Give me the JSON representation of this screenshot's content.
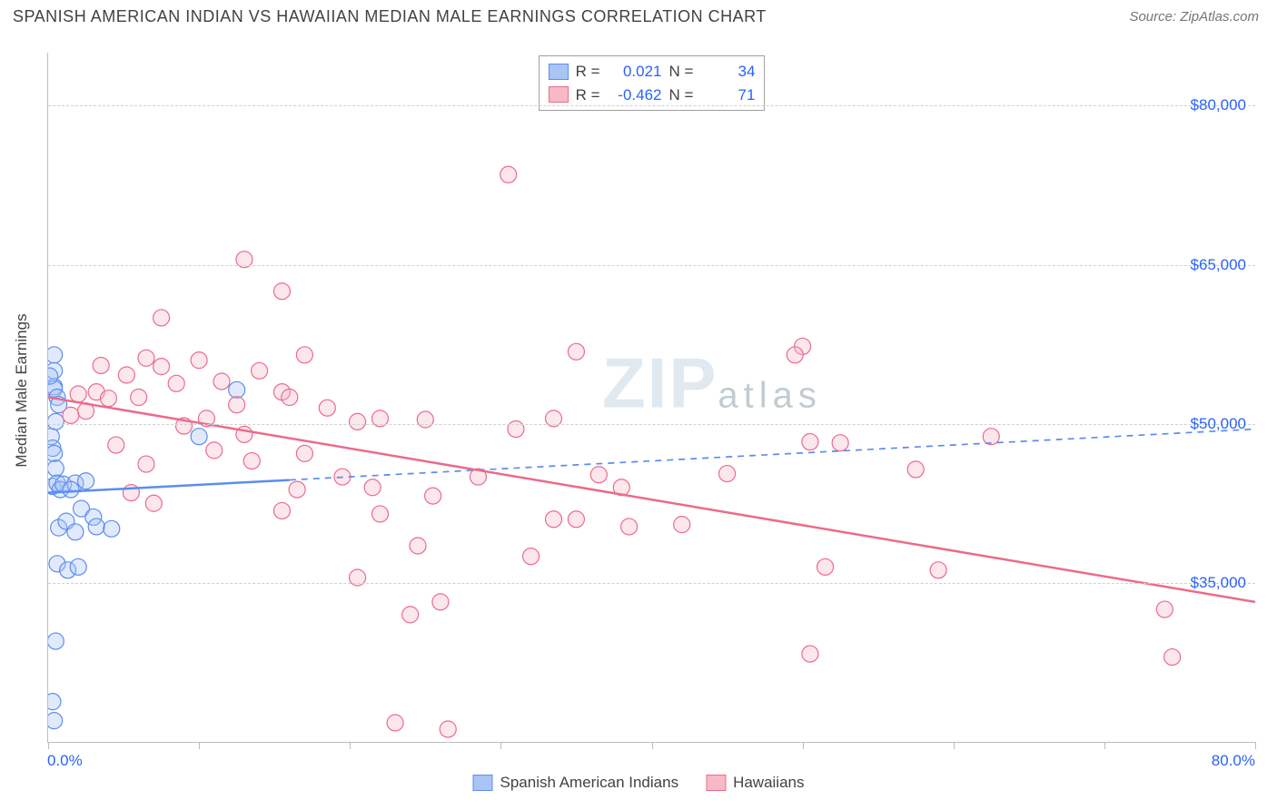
{
  "header": {
    "title": "SPANISH AMERICAN INDIAN VS HAWAIIAN MEDIAN MALE EARNINGS CORRELATION CHART",
    "source": "Source: ZipAtlas.com"
  },
  "watermark": {
    "main": "ZIP",
    "sub": "atlas"
  },
  "chart": {
    "type": "scatter",
    "ylabel": "Median Male Earnings",
    "xlim": [
      0,
      80
    ],
    "ylim": [
      20000,
      85000
    ],
    "xaxis_min_label": "0.0%",
    "xaxis_max_label": "80.0%",
    "ytick_values": [
      35000,
      50000,
      65000,
      80000
    ],
    "ytick_labels": [
      "$35,000",
      "$50,000",
      "$65,000",
      "$80,000"
    ],
    "xtick_values": [
      0,
      10,
      20,
      30,
      40,
      50,
      60,
      70,
      80
    ],
    "background_color": "#ffffff",
    "grid_color": "#d0d0d0",
    "grid_dash": "4,4",
    "axis_color": "#bdbdbd",
    "tick_label_color": "#2962ff",
    "marker_radius": 9,
    "marker_fill_opacity": 0.35,
    "trend_line_width": 2.5,
    "series": [
      {
        "name": "Spanish American Indians",
        "color": "#5b8def",
        "fill": "#a9c4f5",
        "stroke": "#5b8def",
        "r_label": "R =",
        "r_value": "0.021",
        "n_label": "N =",
        "n_value": "34",
        "trend": {
          "x1": 0,
          "y1": 43500,
          "x2": 80,
          "y2": 49500,
          "solid_until_x": 16,
          "dash": "7,6"
        },
        "points": [
          [
            0.4,
            56500
          ],
          [
            0.4,
            55000
          ],
          [
            0.4,
            53500
          ],
          [
            0.4,
            53300
          ],
          [
            0.6,
            52500
          ],
          [
            0.7,
            51800
          ],
          [
            0.1,
            54500
          ],
          [
            0.5,
            50200
          ],
          [
            0.2,
            48800
          ],
          [
            0.3,
            47700
          ],
          [
            0.4,
            47200
          ],
          [
            0.5,
            45800
          ],
          [
            0.3,
            44100
          ],
          [
            0.6,
            44400
          ],
          [
            0.8,
            43800
          ],
          [
            1.0,
            44300
          ],
          [
            1.8,
            44400
          ],
          [
            2.5,
            44600
          ],
          [
            1.5,
            43800
          ],
          [
            2.2,
            42000
          ],
          [
            3.0,
            41200
          ],
          [
            0.7,
            40200
          ],
          [
            1.2,
            40800
          ],
          [
            1.8,
            39800
          ],
          [
            3.2,
            40300
          ],
          [
            4.2,
            40100
          ],
          [
            0.6,
            36800
          ],
          [
            1.3,
            36200
          ],
          [
            2.0,
            36500
          ],
          [
            0.5,
            29500
          ],
          [
            0.3,
            23800
          ],
          [
            0.4,
            22000
          ],
          [
            12.5,
            53200
          ],
          [
            10.0,
            48800
          ]
        ]
      },
      {
        "name": "Hawaiians",
        "color": "#ec6b8a",
        "fill": "#f7b9c8",
        "stroke": "#ec6b8a",
        "r_label": "R =",
        "r_value": "-0.462",
        "n_label": "N =",
        "n_value": "71",
        "trend": {
          "x1": 0,
          "y1": 52500,
          "x2": 80,
          "y2": 33200,
          "solid_until_x": 80,
          "dash": null
        },
        "points": [
          [
            30.5,
            73500
          ],
          [
            13.0,
            65500
          ],
          [
            50.0,
            57300
          ],
          [
            7.5,
            60000
          ],
          [
            15.5,
            62500
          ],
          [
            17.0,
            56500
          ],
          [
            3.5,
            55500
          ],
          [
            3.2,
            53000
          ],
          [
            4.0,
            52400
          ],
          [
            5.2,
            54600
          ],
          [
            6.0,
            52500
          ],
          [
            6.5,
            56200
          ],
          [
            7.5,
            55400
          ],
          [
            8.5,
            53800
          ],
          [
            10.0,
            56000
          ],
          [
            11.5,
            54000
          ],
          [
            12.5,
            51800
          ],
          [
            14.0,
            55000
          ],
          [
            15.5,
            53000
          ],
          [
            2.0,
            52800
          ],
          [
            2.5,
            51200
          ],
          [
            1.5,
            50800
          ],
          [
            9.0,
            49800
          ],
          [
            10.5,
            50500
          ],
          [
            13.0,
            49000
          ],
          [
            16.0,
            52500
          ],
          [
            18.5,
            51500
          ],
          [
            20.5,
            50200
          ],
          [
            22.0,
            50500
          ],
          [
            25.0,
            50400
          ],
          [
            31.0,
            49500
          ],
          [
            33.5,
            50500
          ],
          [
            50.5,
            48300
          ],
          [
            52.5,
            48200
          ],
          [
            62.5,
            48800
          ],
          [
            35.0,
            56800
          ],
          [
            49.5,
            56500
          ],
          [
            4.5,
            48000
          ],
          [
            6.5,
            46200
          ],
          [
            11.0,
            47500
          ],
          [
            13.5,
            46500
          ],
          [
            17.0,
            47200
          ],
          [
            19.5,
            45000
          ],
          [
            21.5,
            44000
          ],
          [
            16.5,
            43800
          ],
          [
            5.5,
            43500
          ],
          [
            7.0,
            42500
          ],
          [
            28.5,
            45000
          ],
          [
            36.5,
            45200
          ],
          [
            38.0,
            44000
          ],
          [
            45.0,
            45300
          ],
          [
            57.5,
            45700
          ],
          [
            15.5,
            41800
          ],
          [
            22.0,
            41500
          ],
          [
            25.5,
            43200
          ],
          [
            33.5,
            41000
          ],
          [
            24.5,
            38500
          ],
          [
            35.0,
            41000
          ],
          [
            42.0,
            40500
          ],
          [
            20.5,
            35500
          ],
          [
            32.0,
            37500
          ],
          [
            38.5,
            40300
          ],
          [
            24.0,
            32000
          ],
          [
            26.0,
            33200
          ],
          [
            51.5,
            36500
          ],
          [
            59.0,
            36200
          ],
          [
            50.5,
            28300
          ],
          [
            74.5,
            28000
          ],
          [
            74.0,
            32500
          ],
          [
            23.0,
            21800
          ],
          [
            26.5,
            21200
          ]
        ]
      }
    ]
  },
  "bottom_legend": {
    "items": [
      {
        "label": "Spanish American Indians",
        "color": "#a9c4f5",
        "border": "#5b8def"
      },
      {
        "label": "Hawaiians",
        "color": "#f7b9c8",
        "border": "#ec6b8a"
      }
    ]
  }
}
